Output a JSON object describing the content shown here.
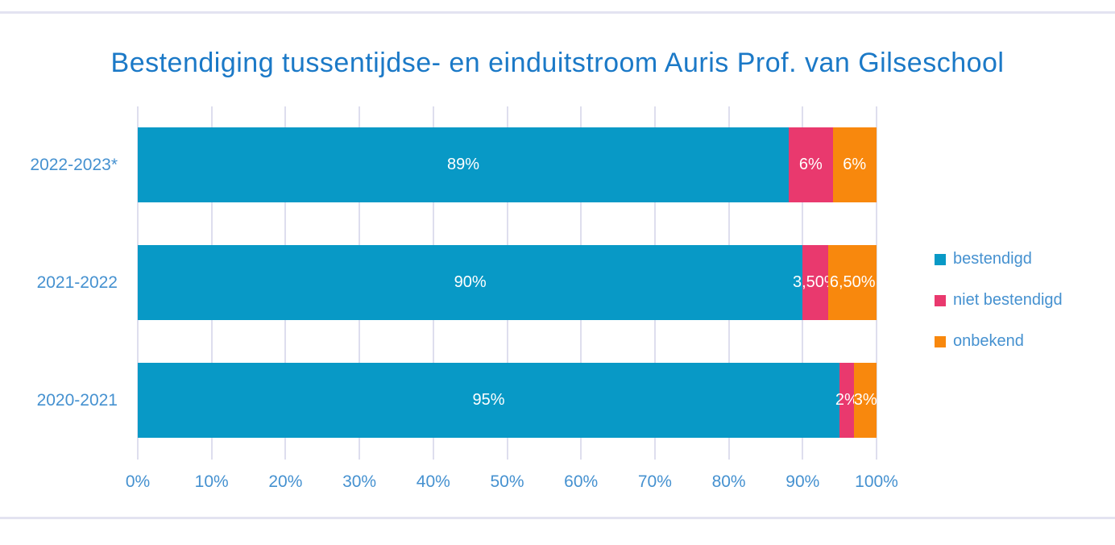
{
  "page": {
    "background": "#ffffff",
    "rule_color": "#e3e3f1"
  },
  "chart_data": {
    "type": "bar",
    "orientation": "horizontal",
    "stacked": true,
    "title": "Bestendiging tussentijdse- en einduitstroom Auris Prof. van Gilseschool",
    "title_color": "#1b79c7",
    "categories": [
      "2022-2023*",
      "2021-2022",
      "2020-2021"
    ],
    "series": [
      {
        "name": "bestendigd",
        "color": "#0899c6",
        "values": [
          89,
          90,
          95
        ],
        "labels": [
          "89%",
          "90%",
          "95%"
        ]
      },
      {
        "name": "niet bestendigd",
        "color": "#e9396e",
        "values": [
          6,
          3.5,
          2
        ],
        "labels": [
          "6%",
          "3,50%",
          "2%"
        ]
      },
      {
        "name": "onbekend",
        "color": "#f8880d",
        "values": [
          6,
          6.5,
          3
        ],
        "labels": [
          "6%",
          "6,50%",
          "3%"
        ]
      }
    ],
    "x_ticks": [
      "0%",
      "10%",
      "20%",
      "30%",
      "40%",
      "50%",
      "60%",
      "70%",
      "80%",
      "90%",
      "100%"
    ],
    "xlim": [
      0,
      100
    ],
    "grid": true,
    "gridline_color": "#dedeee",
    "axis_label_color": "#4591d0",
    "category_label_color": "#4591d0",
    "legend_position": "right",
    "legend_text_color": "#4591d0",
    "data_label_color": "#ffffff"
  }
}
